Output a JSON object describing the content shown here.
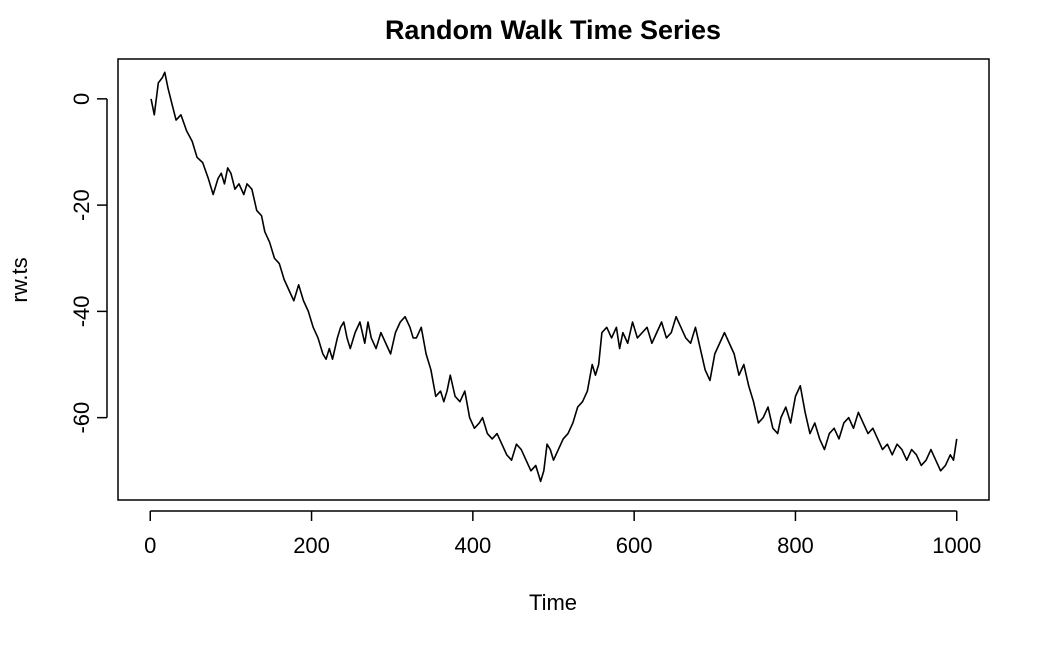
{
  "chart_data": {
    "type": "line",
    "title": "Random Walk Time Series",
    "xlabel": "Time",
    "ylabel": "rw.ts",
    "xlim": [
      -40,
      1040
    ],
    "ylim": [
      -75.5,
      7.5
    ],
    "xticks": [
      0,
      200,
      400,
      600,
      800,
      1000
    ],
    "yticks": [
      0,
      -20,
      -40,
      -60
    ],
    "xtick_labels": [
      "0",
      "200",
      "400",
      "600",
      "800",
      "1000"
    ],
    "ytick_labels": [
      "0",
      "-20",
      "-40",
      "-60"
    ],
    "grid": false,
    "line_color": "#000000",
    "series": [
      {
        "x": [
          1,
          5,
          10,
          15,
          18,
          22,
          27,
          32,
          38,
          45,
          52,
          58,
          65,
          72,
          78,
          84,
          88,
          92,
          96,
          100,
          105,
          110,
          116,
          120,
          126,
          132,
          138,
          142,
          148,
          154,
          160,
          166,
          172,
          178,
          184,
          190,
          196,
          202,
          208,
          214,
          218,
          222,
          226,
          232,
          236,
          240,
          244,
          248,
          254,
          260,
          266,
          270,
          274,
          280,
          286,
          292,
          298,
          304,
          310,
          316,
          322,
          326,
          330,
          336,
          342,
          348,
          354,
          360,
          364,
          368,
          372,
          378,
          384,
          390,
          396,
          402,
          408,
          412,
          418,
          424,
          430,
          436,
          442,
          448,
          454,
          460,
          466,
          472,
          478,
          484,
          488,
          492,
          496,
          500,
          506,
          512,
          518,
          524,
          530,
          536,
          542,
          548,
          552,
          556,
          560,
          566,
          572,
          578,
          582,
          586,
          592,
          598,
          604,
          610,
          616,
          622,
          628,
          634,
          640,
          646,
          652,
          658,
          664,
          670,
          676,
          682,
          688,
          694,
          700,
          706,
          712,
          718,
          724,
          730,
          736,
          742,
          748,
          754,
          760,
          766,
          772,
          778,
          782,
          788,
          794,
          800,
          806,
          812,
          818,
          824,
          830,
          836,
          842,
          848,
          854,
          860,
          866,
          872,
          878,
          884,
          890,
          896,
          902,
          908,
          914,
          920,
          926,
          932,
          938,
          944,
          950,
          956,
          962,
          968,
          974,
          980,
          986,
          992,
          996,
          1000
        ],
        "y": [
          0,
          -3,
          3,
          4,
          5,
          2,
          -1,
          -4,
          -3,
          -6,
          -8,
          -11,
          -12,
          -15,
          -18,
          -15,
          -14,
          -16,
          -13,
          -14,
          -17,
          -16,
          -18,
          -16,
          -17,
          -21,
          -22,
          -25,
          -27,
          -30,
          -31,
          -34,
          -36,
          -38,
          -35,
          -38,
          -40,
          -43,
          -45,
          -48,
          -49,
          -47,
          -49,
          -45,
          -43,
          -42,
          -45,
          -47,
          -44,
          -42,
          -46,
          -42,
          -45,
          -47,
          -44,
          -46,
          -48,
          -44,
          -42,
          -41,
          -43,
          -45,
          -45,
          -43,
          -48,
          -51,
          -56,
          -55,
          -57,
          -55,
          -52,
          -56,
          -57,
          -55,
          -60,
          -62,
          -61,
          -60,
          -63,
          -64,
          -63,
          -65,
          -67,
          -68,
          -65,
          -66,
          -68,
          -70,
          -69,
          -72,
          -70,
          -65,
          -66,
          -68,
          -66,
          -64,
          -63,
          -61,
          -58,
          -57,
          -55,
          -50,
          -52,
          -50,
          -44,
          -43,
          -45,
          -43,
          -47,
          -44,
          -46,
          -42,
          -45,
          -44,
          -43,
          -46,
          -44,
          -42,
          -45,
          -44,
          -41,
          -43,
          -45,
          -46,
          -43,
          -47,
          -51,
          -53,
          -48,
          -46,
          -44,
          -46,
          -48,
          -52,
          -50,
          -54,
          -57,
          -61,
          -60,
          -58,
          -62,
          -63,
          -60,
          -58,
          -61,
          -56,
          -54,
          -59,
          -63,
          -61,
          -64,
          -66,
          -63,
          -62,
          -64,
          -61,
          -60,
          -62,
          -59,
          -61,
          -63,
          -62,
          -64,
          -66,
          -65,
          -67,
          -65,
          -66,
          -68,
          -66,
          -67,
          -69,
          -68,
          -66,
          -68,
          -70,
          -69,
          -67,
          -68,
          -64
        ]
      }
    ]
  }
}
